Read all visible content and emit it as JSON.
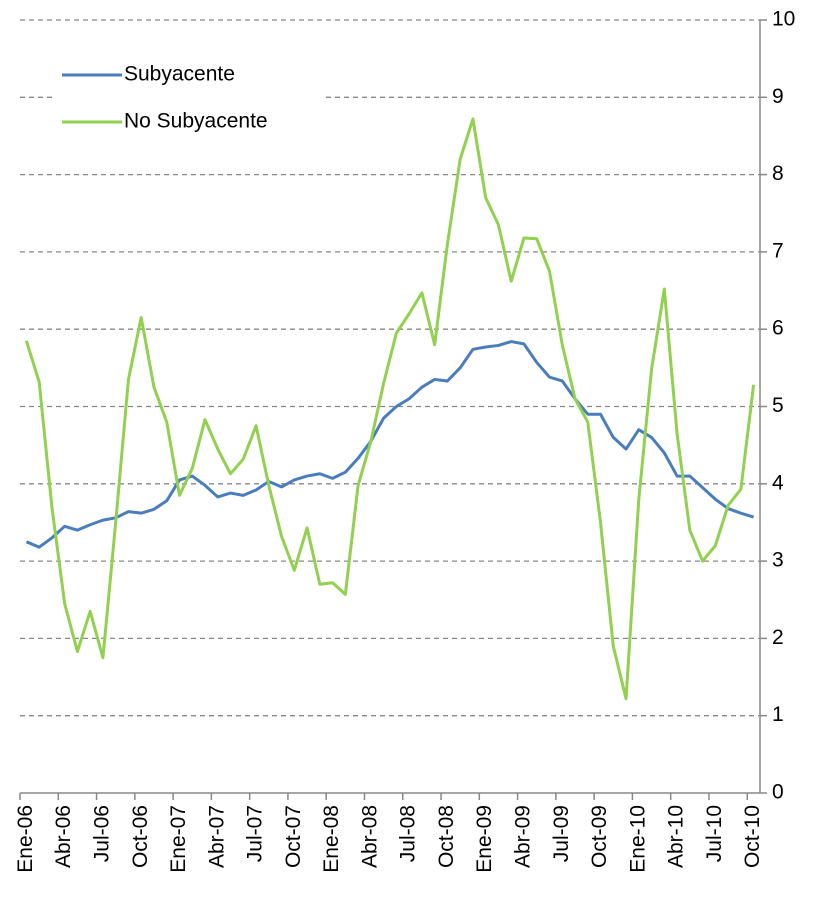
{
  "chart_data": {
    "type": "line",
    "categories": [
      "Ene-06",
      null,
      null,
      "Abr-06",
      null,
      null,
      "Jul-06",
      null,
      null,
      "Oct-06",
      null,
      null,
      "Ene-07",
      null,
      null,
      "Abr-07",
      null,
      null,
      "Jul-07",
      null,
      null,
      "Oct-07",
      null,
      null,
      "Ene-08",
      null,
      null,
      "Abr-08",
      null,
      null,
      "Jul-08",
      null,
      null,
      "Oct-08",
      null,
      null,
      "Ene-09",
      null,
      null,
      "Abr-09",
      null,
      null,
      "Jul-09",
      null,
      null,
      "Oct-09",
      null,
      null,
      "Ene-10",
      null,
      null,
      "Abr-10",
      null,
      null,
      "Jul-10",
      null,
      null,
      "Oct-10"
    ],
    "series": [
      {
        "name": "Subyacente",
        "color": "#4a7ebb",
        "values": [
          3.25,
          3.18,
          3.3,
          3.45,
          3.4,
          3.47,
          3.53,
          3.56,
          3.64,
          3.62,
          3.67,
          3.78,
          4.05,
          4.1,
          3.98,
          3.83,
          3.88,
          3.85,
          3.92,
          4.03,
          3.96,
          4.05,
          4.1,
          4.13,
          4.07,
          4.15,
          4.33,
          4.55,
          4.85,
          5.0,
          5.1,
          5.25,
          5.35,
          5.33,
          5.5,
          5.74,
          5.77,
          5.79,
          5.84,
          5.81,
          5.57,
          5.38,
          5.33,
          5.1,
          4.9,
          4.9,
          4.6,
          4.45,
          4.7,
          4.6,
          4.4,
          4.1,
          4.1,
          3.95,
          3.8,
          3.68,
          3.62,
          3.57
        ]
      },
      {
        "name": "No Subyacente",
        "color": "#92d050",
        "values": [
          5.85,
          5.32,
          3.7,
          2.45,
          1.83,
          2.35,
          1.75,
          3.5,
          5.35,
          6.15,
          5.25,
          4.8,
          3.85,
          4.2,
          4.83,
          4.45,
          4.13,
          4.32,
          4.75,
          3.98,
          3.32,
          2.88,
          3.43,
          2.7,
          2.72,
          2.57,
          3.98,
          4.55,
          5.3,
          5.95,
          6.2,
          6.47,
          5.8,
          7.1,
          8.2,
          8.72,
          7.7,
          7.35,
          6.62,
          7.18,
          7.17,
          6.75,
          5.8,
          5.1,
          4.8,
          3.5,
          1.9,
          1.22,
          3.8,
          5.48,
          6.52,
          4.65,
          3.4,
          3.0,
          3.2,
          3.72,
          3.93,
          5.28
        ]
      }
    ],
    "ylim": [
      0,
      10
    ],
    "yticks": [
      0,
      1,
      2,
      3,
      4,
      5,
      6,
      7,
      8,
      9,
      10
    ],
    "grid": true,
    "legend": "upper left"
  }
}
